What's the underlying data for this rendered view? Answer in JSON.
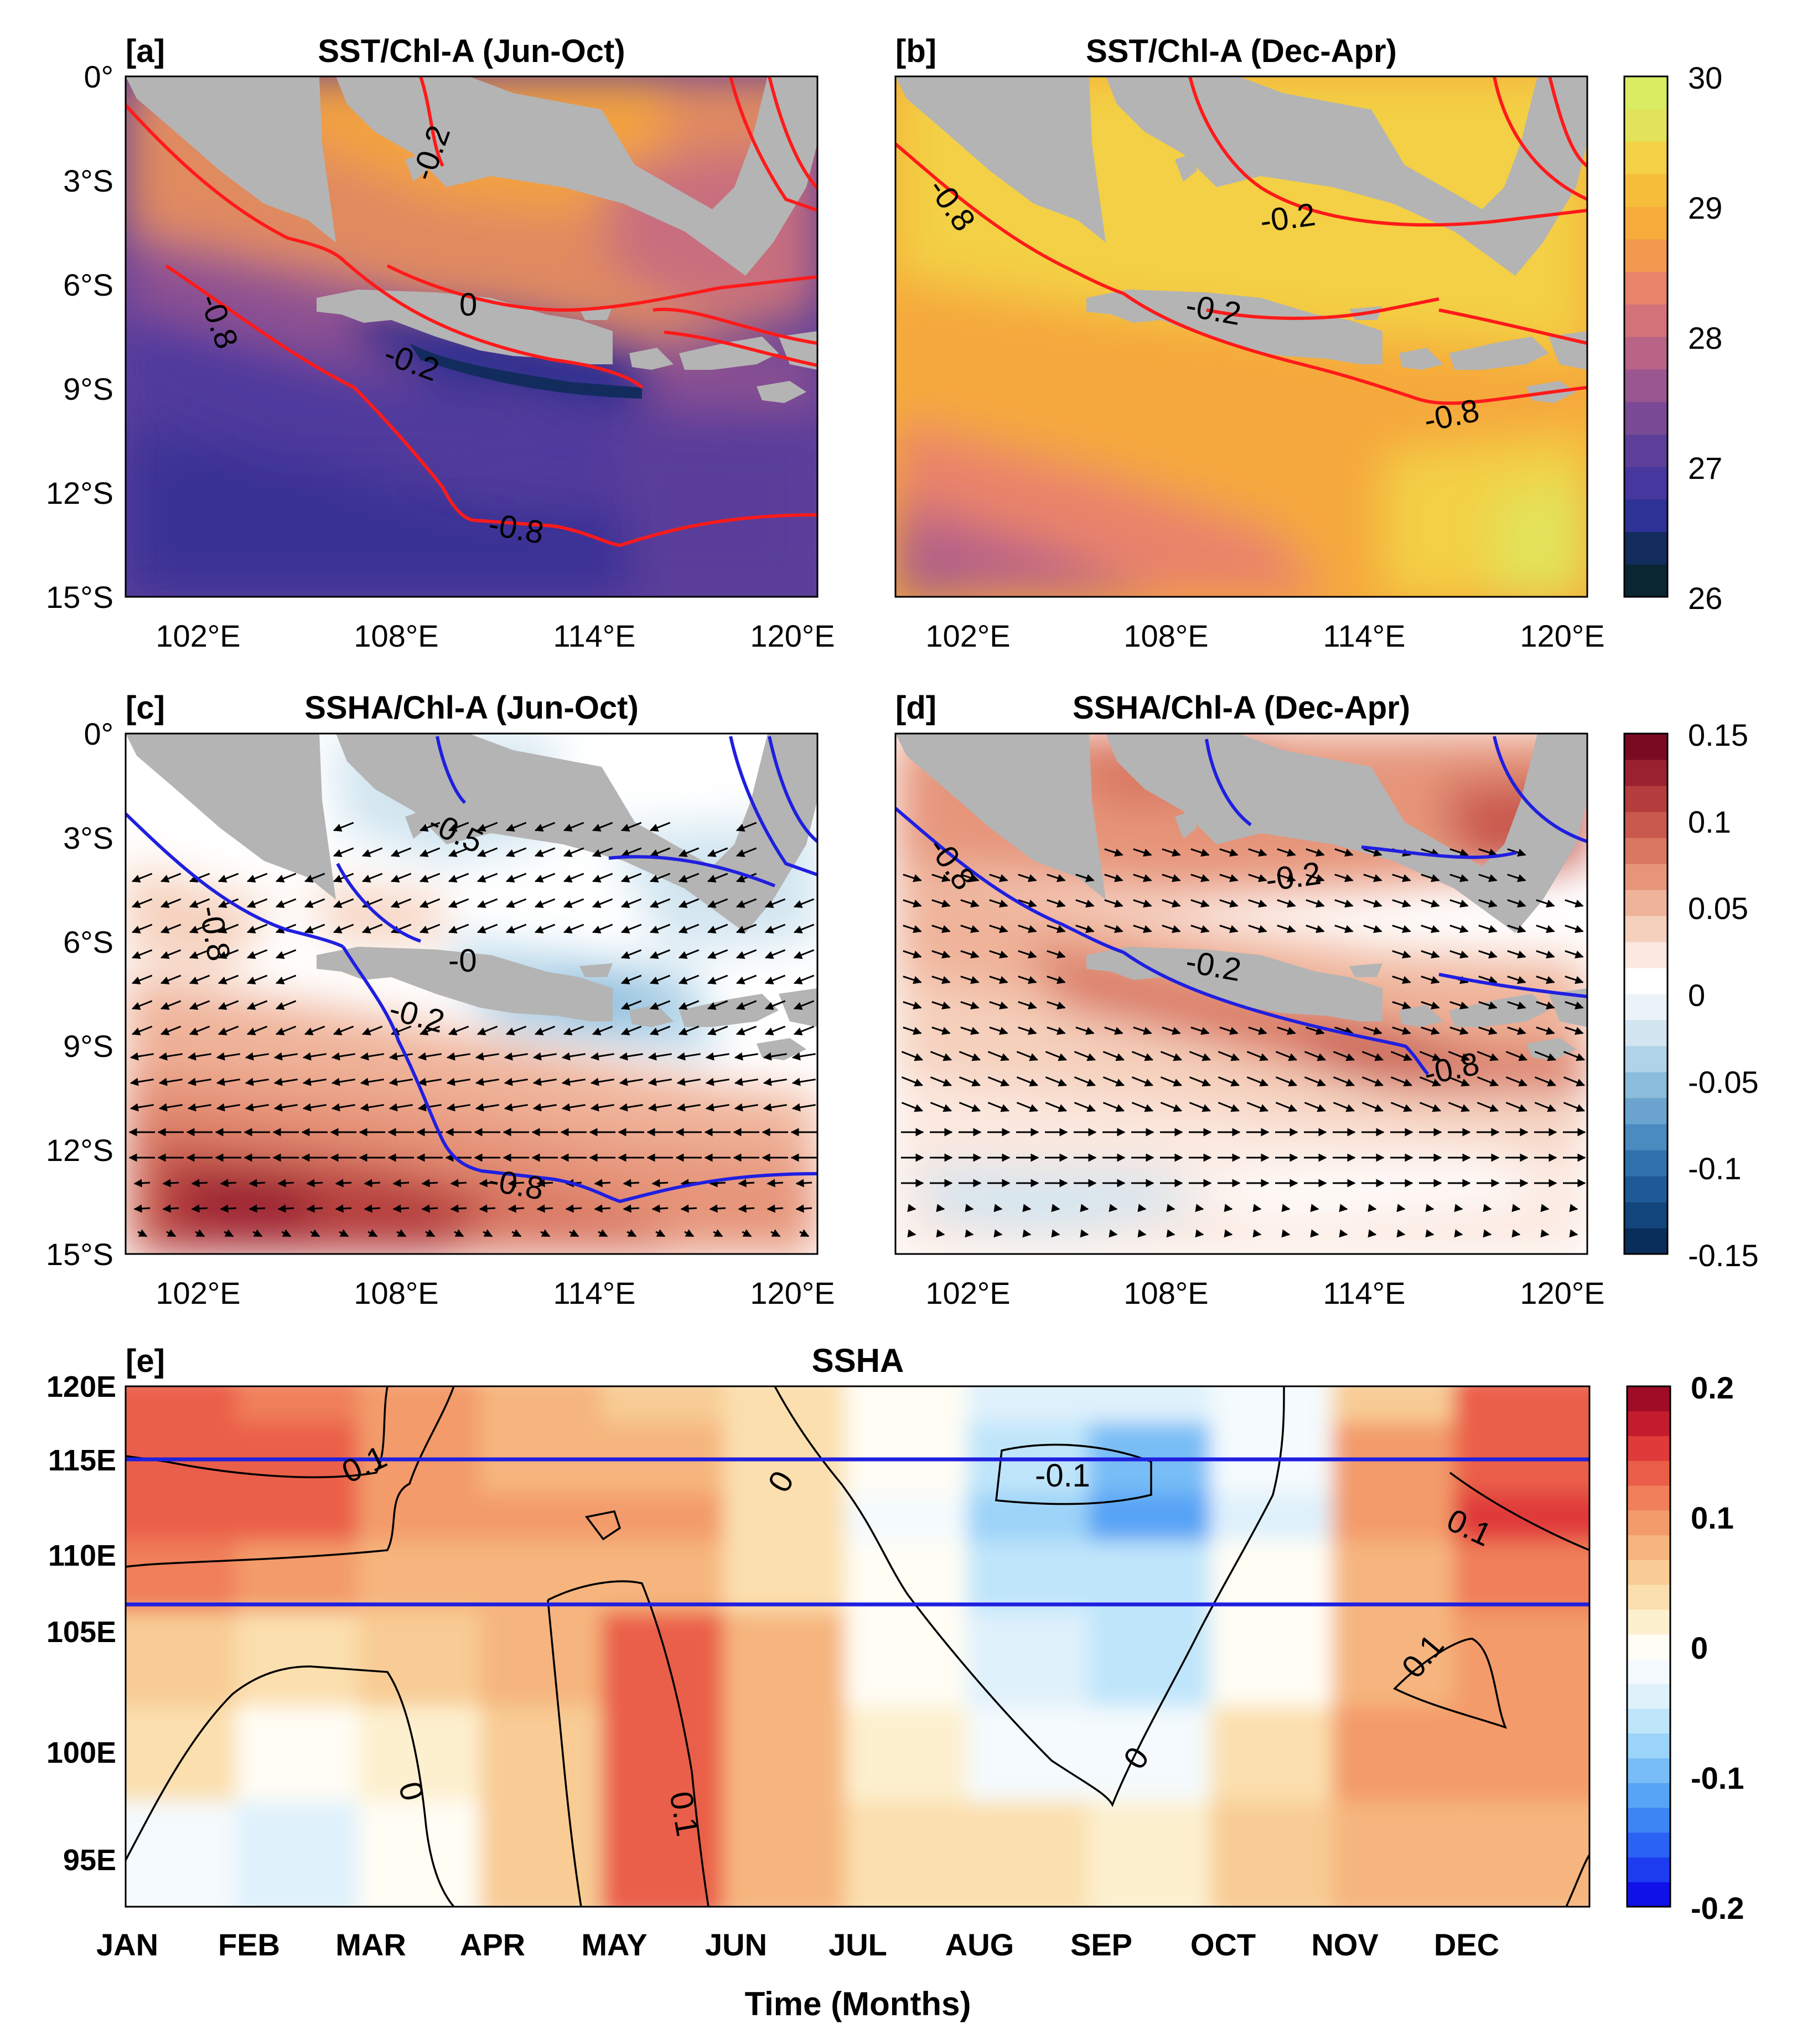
{
  "colors": {
    "land": "#b4b4b4",
    "contour_red": "#ff1a1a",
    "contour_blue": "#1f1fe0",
    "band_line": "#1f1fe0",
    "contour_black": "#000000"
  },
  "chart_data": [
    {
      "id": "a",
      "panel_label": "[a]",
      "type": "heatmap",
      "title": "SST/Chl-A (Jun-Oct)",
      "variable": "SST",
      "x_ticks": [
        "102°E",
        "108°E",
        "114°E",
        "120°E"
      ],
      "y_ticks": [
        "0°",
        "3°S",
        "6°S",
        "9°S",
        "12°S",
        "15°S"
      ],
      "xlim": [
        99,
        120
      ],
      "ylim": [
        -15,
        0
      ],
      "contour_labels": [
        "-0.8",
        "-0.2",
        "-0.2",
        "0",
        "-0.8"
      ],
      "field_summary": {
        "north_sea": 28.8,
        "south_java": 26.9,
        "open_ocean_south": 27.1
      }
    },
    {
      "id": "b",
      "panel_label": "[b]",
      "type": "heatmap",
      "title": "SST/Chl-A (Dec-Apr)",
      "variable": "SST",
      "x_ticks": [
        "102°E",
        "108°E",
        "114°E",
        "120°E"
      ],
      "y_ticks": [
        "0°",
        "3°S",
        "6°S",
        "9°S",
        "12°S",
        "15°S"
      ],
      "xlim": [
        99,
        120
      ],
      "ylim": [
        -15,
        0
      ],
      "contour_labels": [
        "-0.8",
        "-0.2",
        "-0.2",
        "-0.8"
      ],
      "field_summary": {
        "north_sea": 29.3,
        "south_java": 28.9,
        "southeast_max": 29.8,
        "southwest_min": 28.2
      }
    },
    {
      "id": "sst_colorbar",
      "type": "colorbar",
      "ticks": [
        "30",
        "29",
        "28",
        "27",
        "26"
      ],
      "range": [
        26,
        30
      ],
      "colors": [
        "#0b2633",
        "#122c5e",
        "#2e3196",
        "#46389e",
        "#5d3f99",
        "#7a4a96",
        "#9a5690",
        "#b96386",
        "#d4727a",
        "#e9836a",
        "#f3994f",
        "#f6ab3a",
        "#f5bd3a",
        "#f3d045",
        "#e2e35a",
        "#d9ec62"
      ]
    },
    {
      "id": "c",
      "panel_label": "[c]",
      "type": "heatmap",
      "title": "SSHA/Chl-A (Jun-Oct)",
      "variable": "SSHA",
      "x_ticks": [
        "102°E",
        "108°E",
        "114°E",
        "120°E"
      ],
      "y_ticks": [
        "0°",
        "3°S",
        "6°S",
        "9°S",
        "12°S",
        "15°S"
      ],
      "xlim": [
        99,
        120
      ],
      "ylim": [
        -15,
        0
      ],
      "contour_labels": [
        "-0.5",
        "-0.8",
        "-0",
        "-0.2",
        "-0.8"
      ],
      "field_summary": {
        "south_max": 0.13,
        "java_sea": -0.03,
        "south_java": -0.05
      }
    },
    {
      "id": "d",
      "panel_label": "[d]",
      "type": "heatmap",
      "title": "SSHA/Chl-A (Dec-Apr)",
      "variable": "SSHA",
      "x_ticks": [
        "102°E",
        "108°E",
        "114°E",
        "120°E"
      ],
      "y_ticks": [
        "0°",
        "3°S",
        "6°S",
        "9°S",
        "12°S",
        "15°S"
      ],
      "xlim": [
        99,
        120
      ],
      "ylim": [
        -15,
        0
      ],
      "contour_labels": [
        "-0.8",
        "-0.2",
        "-0.2",
        "-0.8"
      ],
      "field_summary": {
        "north": 0.09,
        "south_java": 0.1,
        "far_south": -0.01
      }
    },
    {
      "id": "ssha_colorbar",
      "type": "colorbar",
      "ticks": [
        "0.15",
        "0.1",
        "0.05",
        "0",
        "-0.05",
        "-0.1",
        "-0.15"
      ],
      "range": [
        -0.15,
        0.15
      ],
      "colors": [
        "#0a2e5c",
        "#13457d",
        "#1f5a98",
        "#3072ae",
        "#4a8bc0",
        "#6aa4cf",
        "#8cbcdc",
        "#b0d3e8",
        "#d2e5f0",
        "#ecf3f8",
        "#ffffff",
        "#fbe8df",
        "#f5d0bc",
        "#efb39a",
        "#e6957a",
        "#d97762",
        "#c9594e",
        "#b53d3d",
        "#9a2130",
        "#7a0a22"
      ]
    },
    {
      "id": "e",
      "panel_label": "[e]",
      "type": "heatmap",
      "title": "SSHA",
      "xlabel": "Time (Months)",
      "x_ticks": [
        "JAN",
        "FEB",
        "MAR",
        "APR",
        "MAY",
        "JUN",
        "JUL",
        "AUG",
        "SEP",
        "OCT",
        "NOV",
        "DEC"
      ],
      "y_ticks": [
        "120E",
        "115E",
        "110E",
        "105E",
        "100E",
        "95E"
      ],
      "ylim": [
        92.5,
        120
      ],
      "band_lines_lon": [
        115,
        107.5
      ],
      "contour_labels": [
        "0.1",
        "0",
        "-0.1",
        "0.1",
        "0.1",
        "0.1",
        "0",
        "0"
      ],
      "longitudes": [
        120,
        115,
        112.5,
        110,
        105,
        100,
        95
      ],
      "months": [
        "JAN",
        "FEB",
        "MAR",
        "APR",
        "MAY",
        "JUN",
        "JUL",
        "AUG",
        "SEP",
        "OCT",
        "NOV",
        "DEC"
      ],
      "values": [
        [
          0.13,
          0.12,
          0.11,
          0.08,
          0.06,
          0.03,
          0.0,
          -0.04,
          -0.05,
          -0.02,
          0.06,
          0.13
        ],
        [
          0.15,
          0.13,
          0.11,
          0.08,
          0.07,
          0.03,
          -0.01,
          -0.07,
          -0.1,
          -0.03,
          0.09,
          0.15
        ],
        [
          0.15,
          0.14,
          0.11,
          0.09,
          0.1,
          0.04,
          -0.02,
          -0.09,
          -0.12,
          -0.04,
          0.11,
          0.16
        ],
        [
          0.12,
          0.1,
          0.08,
          0.07,
          0.08,
          0.04,
          -0.01,
          -0.06,
          -0.06,
          -0.01,
          0.07,
          0.12
        ],
        [
          0.05,
          0.04,
          0.05,
          0.07,
          0.14,
          0.07,
          0.0,
          -0.05,
          -0.06,
          0.0,
          0.08,
          0.09
        ],
        [
          0.03,
          0.0,
          0.02,
          0.05,
          0.14,
          0.08,
          0.02,
          -0.02,
          -0.03,
          0.04,
          0.09,
          0.1
        ],
        [
          -0.02,
          -0.05,
          -0.01,
          0.05,
          0.13,
          0.07,
          0.04,
          0.03,
          0.02,
          0.06,
          0.08,
          0.07
        ]
      ]
    },
    {
      "id": "e_colorbar",
      "type": "colorbar",
      "ticks": [
        "0.2",
        "0.1",
        "0",
        "-0.1",
        "-0.2"
      ],
      "range": [
        -0.2,
        0.2
      ],
      "colors": [
        "#1010e8",
        "#1d3cf0",
        "#2a62f5",
        "#3d85f5",
        "#57a3f5",
        "#78bdf6",
        "#9cd3f8",
        "#bfe5fa",
        "#dff1fb",
        "#f4fafd",
        "#fffdf4",
        "#fdf0cf",
        "#fbdfae",
        "#f8cc94",
        "#f6b57e",
        "#f39b6b",
        "#f07f5a",
        "#ea5e49",
        "#e03a3a",
        "#c41c2f",
        "#a00c25"
      ]
    }
  ]
}
